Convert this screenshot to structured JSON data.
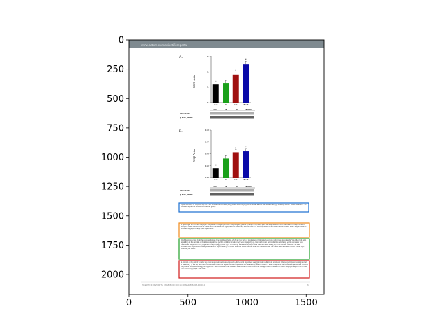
{
  "plot": {
    "x_ticks": [
      "0",
      "500",
      "1000",
      "1500"
    ],
    "y_ticks": [
      "0",
      "250",
      "500",
      "750",
      "1000",
      "1250",
      "1500",
      "1750",
      "2000"
    ],
    "xlim": [
      0,
      1650
    ],
    "ylim": [
      2170,
      0
    ]
  },
  "page": {
    "header_url": "www.nature.com/scientificreports/",
    "panel_a": {
      "label": "A.",
      "ylabel": "XO/β-Actin",
      "y_ticks": [
        "0.3",
        "0.2",
        "0.1",
        "0.0"
      ],
      "categories": [
        "Con",
        "HU",
        "TBI",
        "TBI+HU"
      ],
      "values": [
        0.12,
        0.125,
        0.18,
        0.25
      ],
      "colors": [
        "#000000",
        "#1aa01a",
        "#a01010",
        "#0a0aa8"
      ],
      "blot_labels": [
        "XO, 146 kDa",
        "β-Actin, 42 kDa"
      ],
      "blot_header": [
        "Con",
        "TBI",
        "HU",
        "TBI+HU"
      ]
    },
    "panel_b": {
      "label": "B.",
      "ylabel": "XO/β-Actin",
      "y_ticks": [
        "0.100",
        "0.075",
        "0.050",
        "0.025",
        "0.000"
      ],
      "categories": [
        "Con",
        "HU",
        "TBI",
        "TBI+HU"
      ],
      "values": [
        0.02,
        0.04,
        0.053,
        0.055
      ],
      "colors": [
        "#000000",
        "#1aa01a",
        "#a01010",
        "#0a0aa8"
      ],
      "blot_labels": [
        "XO, 146 kDa",
        "β-Actin, 42 kDa"
      ],
      "blot_header": [
        "Con",
        "TBI",
        "HU",
        "TBI+HU"
      ]
    },
    "caption": "Figure 4. Effects of TBI, HU and TBI+HU on Xanthine Oxidase (XO) protein levels in (A) gastrocnemius muscle feed arteries and (B) coronary arteries. Values are mean ± SE. *Denotes significant difference from Con group.",
    "para_orange": "of spaceflight to LEO and deep space. Exposure to charged particles comprising the galactic cosmic rays in deep space has the potential to elicit a number of complications in biological tissue. Recent work in rodents and cell culture has highlighted the potentially harmful effects of such exposures on the cardiovascular system, which may translate to astronauts engaged in deep space expeditions.",
    "para_green": "Weightlessness occurs from the relative absence of the Van Allen belts, which are two belts of geomagnetically trapped electrons and protons known as the Van Allen belts and, depending on the duration of their missions and the specific activities in which they were engaged (e.g., lunar surface and extravehicular activities), Apollo astronauts were continuously subjected to varying levels of high energy cosmic rays. Fortunately, there were no major solar particle events during any of the Apollo missions. The lunar astronauts also experienced visual phenomenon of light flashes (~17 times) when the spacecraft was dark, and concluded that the flashes were the result of HZE cosmic rays traversing the retina.",
    "para_red": "In addition to the galactic cosmic rays that the space travelers are exposed to, the level of high-linear energy transfer radiation of astronauts. Charged particles traversing the hull or \"shielding\" of the ship will incur nuclear interactions that depend on the composition and thickness of the hull material. These interactions will result in fragmentation products and particles of reduced energy but higher LET that contribute to the radiation dose within the spacecraft. The average radiation dose for the seven deep space Apollo crews was 0.18 ± 0.12 cGy (range 0.16–1.14).",
    "footer": "SCIENTIFIC REPORTS | (2018) 8:00 | DOI:10.1038/s41598-018-00000-0",
    "page_number": "6"
  }
}
